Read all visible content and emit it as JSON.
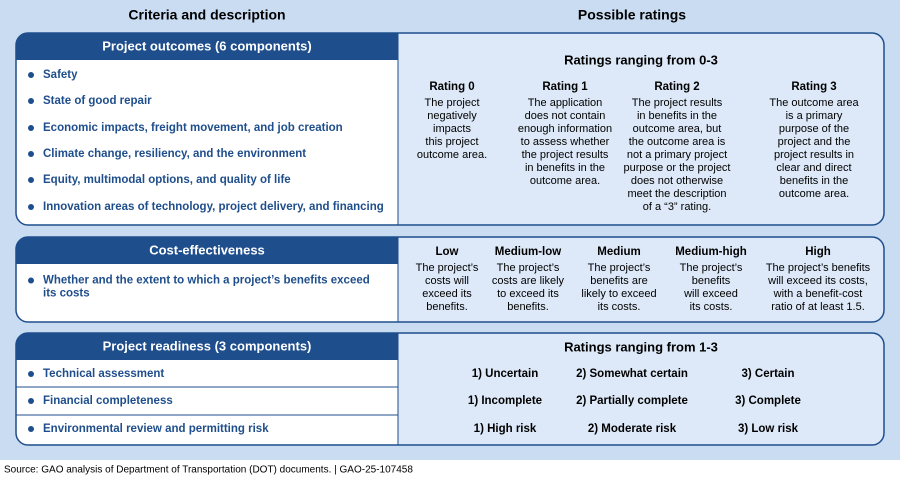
{
  "header": {
    "left": "Criteria and description",
    "right": "Possible ratings"
  },
  "sections": [
    {
      "title": "Project outcomes (6 components)",
      "items": [
        [
          "Safety"
        ],
        [
          "State of good repair"
        ],
        [
          "Economic impacts, freight movement, and job creation"
        ],
        [
          "Climate change, resiliency, and the environment"
        ],
        [
          "Equity, multimodal options, and quality of life"
        ],
        [
          "Innovation areas of technology, project delivery, and financing"
        ]
      ],
      "scale_title": "Ratings ranging from 0-3",
      "ratings": [
        {
          "label": "Rating 0",
          "description": [
            "The project",
            "negatively",
            "impacts",
            "this project",
            "outcome area."
          ]
        },
        {
          "label": "Rating 1",
          "description": [
            "The application",
            "does not contain",
            "enough information",
            "to assess whether",
            "the project results",
            "in benefits in the",
            "outcome area."
          ]
        },
        {
          "label": "Rating 2",
          "description": [
            "The project results",
            "in benefits in the",
            "outcome area, but",
            "the outcome area is",
            "not a primary project",
            "purpose or the project",
            "does not otherwise",
            "meet the description",
            "of a “3” rating."
          ]
        },
        {
          "label": "Rating 3",
          "description": [
            "The outcome area",
            "is a primary",
            "purpose of the",
            "project and the",
            "project results in",
            "clear and direct",
            "benefits in the",
            "outcome area."
          ]
        }
      ]
    },
    {
      "title": "Cost-effectiveness",
      "items": [
        [
          "Whether and the extent to which a project’s benefits exceed",
          "its costs"
        ]
      ],
      "ratings": [
        {
          "label": "Low",
          "description": [
            "The project’s",
            "costs will",
            "exceed its",
            "benefits."
          ]
        },
        {
          "label": "Medium-low",
          "description": [
            "The project’s",
            "costs are likely",
            "to exceed its",
            "benefits."
          ]
        },
        {
          "label": "Medium",
          "description": [
            "The project’s",
            "benefits are",
            "likely to exceed",
            "its costs."
          ]
        },
        {
          "label": "Medium-high",
          "description": [
            "The project’s",
            "benefits",
            "will exceed",
            "its costs."
          ]
        },
        {
          "label": "High",
          "description": [
            "The project’s benefits",
            "will exceed its costs,",
            "with a benefit-cost",
            "ratio of at least 1.5."
          ]
        }
      ]
    },
    {
      "title": "Project readiness (3 components)",
      "items": [
        [
          "Technical assessment"
        ],
        [
          "Financial completeness"
        ],
        [
          "Environmental review and permitting risk"
        ]
      ],
      "scale_title": "Ratings ranging from 1-3",
      "row_ratings": [
        [
          "1) Uncertain",
          "2) Somewhat certain",
          "3) Certain"
        ],
        [
          "1) Incomplete",
          "2) Partially complete",
          "3) Complete"
        ],
        [
          "1) High risk",
          "2) Moderate risk",
          "3) Low risk"
        ]
      ]
    }
  ],
  "source": "Source: GAO analysis of Department of Transportation (DOT) documents.  |  GAO-25-107458"
}
